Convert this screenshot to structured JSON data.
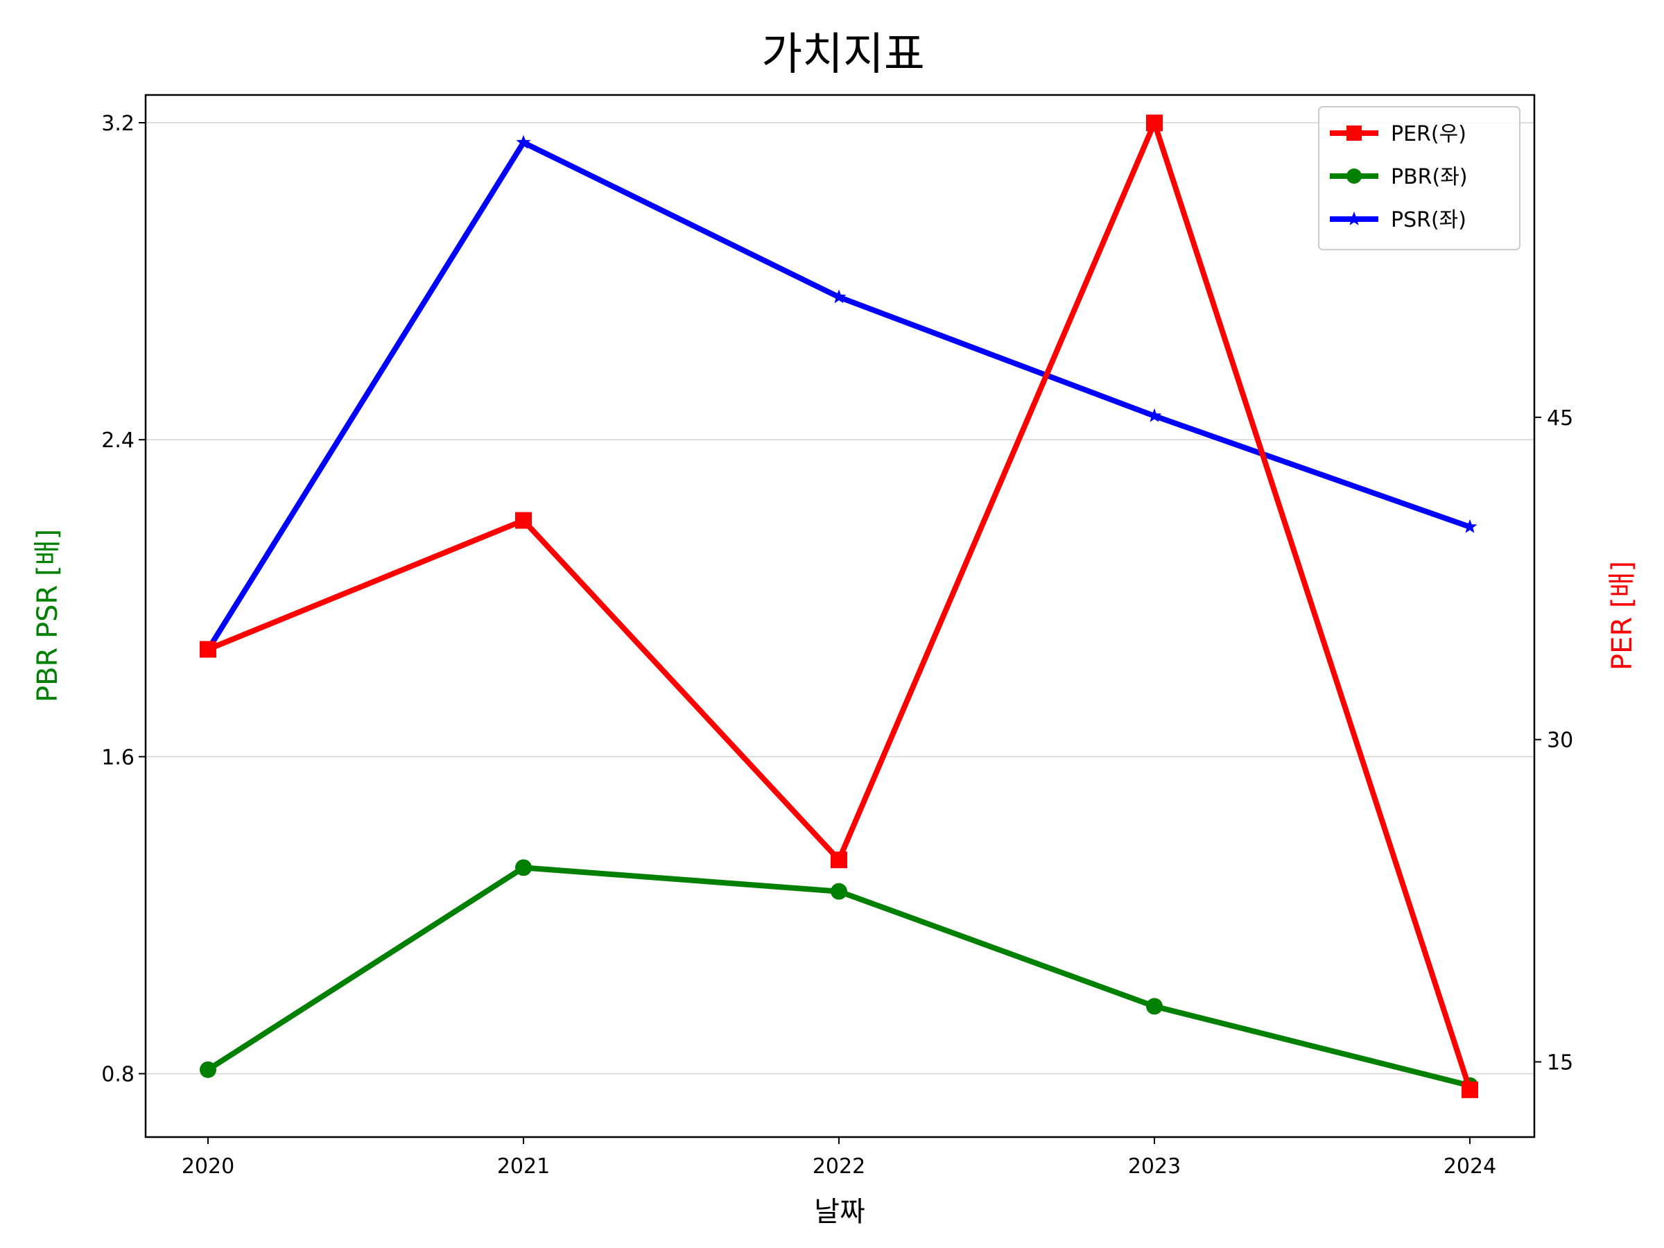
{
  "chart_data": {
    "type": "line",
    "title": "가치지표",
    "xlabel": "날짜",
    "ylabel_left": "PBR PSR [배]",
    "ylabel_right": "PER [배]",
    "ylabel_left_color": "#008000",
    "ylabel_right_color": "#ff0000",
    "categories": [
      "2020",
      "2021",
      "2022",
      "2023",
      "2024"
    ],
    "y_left": {
      "ticks": [
        0.8,
        1.6,
        2.4,
        3.2
      ],
      "tick_labels": [
        "0.8",
        "1.6",
        "2.4",
        "3.2"
      ],
      "lim": [
        0.64,
        3.27
      ]
    },
    "y_right": {
      "ticks": [
        15,
        30,
        45
      ],
      "tick_labels": [
        "15",
        "30",
        "45"
      ],
      "lim": [
        11.5,
        60
      ]
    },
    "grid": "horizontal (left axis)",
    "legend_position": "top-right",
    "series": [
      {
        "name": "PER(우)",
        "axis": "right",
        "color": "#ff0000",
        "marker": "square",
        "values": [
          34.2,
          40.2,
          24.4,
          58.7,
          13.7
        ]
      },
      {
        "name": "PBR(좌)",
        "axis": "left",
        "color": "#008000",
        "marker": "circle",
        "values": [
          0.81,
          1.32,
          1.26,
          0.97,
          0.77
        ]
      },
      {
        "name": "PSR(좌)",
        "axis": "left",
        "color": "#0000ff",
        "marker": "star",
        "values": [
          1.87,
          3.15,
          2.76,
          2.46,
          2.18
        ]
      }
    ]
  }
}
